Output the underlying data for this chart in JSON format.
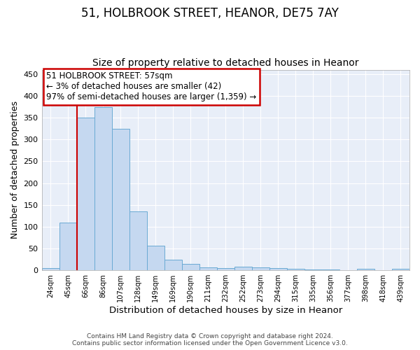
{
  "title_line1": "51, HOLBROOK STREET, HEANOR, DE75 7AY",
  "title_line2": "Size of property relative to detached houses in Heanor",
  "xlabel": "Distribution of detached houses by size in Heanor",
  "ylabel": "Number of detached properties",
  "bar_color": "#c5d8f0",
  "bar_edge_color": "#6aaad4",
  "categories": [
    "24sqm",
    "45sqm",
    "66sqm",
    "86sqm",
    "107sqm",
    "128sqm",
    "149sqm",
    "169sqm",
    "190sqm",
    "211sqm",
    "232sqm",
    "252sqm",
    "273sqm",
    "294sqm",
    "315sqm",
    "335sqm",
    "356sqm",
    "377sqm",
    "398sqm",
    "418sqm",
    "439sqm"
  ],
  "values": [
    5,
    110,
    350,
    375,
    325,
    135,
    57,
    25,
    15,
    7,
    5,
    8,
    7,
    5,
    3,
    2,
    2,
    0,
    4,
    0,
    3
  ],
  "ylim": [
    0,
    460
  ],
  "yticks": [
    0,
    50,
    100,
    150,
    200,
    250,
    300,
    350,
    400,
    450
  ],
  "annotation_text": "51 HOLBROOK STREET: 57sqm\n← 3% of detached houses are smaller (42)\n97% of semi-detached houses are larger (1,359) →",
  "annotation_box_color": "white",
  "annotation_box_edgecolor": "#cc0000",
  "vline_color": "#cc0000",
  "vline_x_index": 1.5,
  "background_color": "#ffffff",
  "plot_bg_color": "#e8eef8",
  "footer_text": "Contains HM Land Registry data © Crown copyright and database right 2024.\nContains public sector information licensed under the Open Government Licence v3.0.",
  "grid_color": "#ffffff",
  "title_fontsize": 12,
  "subtitle_fontsize": 10,
  "label_fontsize": 9
}
